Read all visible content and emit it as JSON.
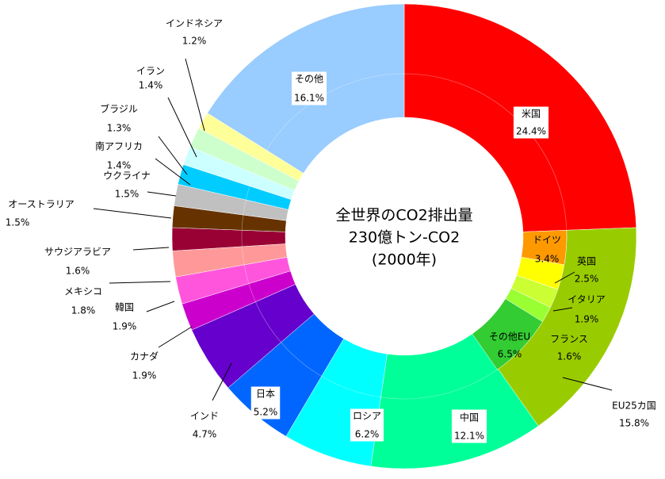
{
  "chart_data": {
    "type": "pie",
    "title": [
      "全世界のCO2排出量",
      "230億トン-CO2",
      "(2000年)"
    ],
    "categories": [
      "米国",
      "EU25カ国",
      "中国",
      "ロシア",
      "日本",
      "インド",
      "カナダ",
      "韓国",
      "メキシコ",
      "サウジアラビア",
      "オーストラリア",
      "ウクライナ",
      "南アフリカ",
      "ブラジル",
      "イラン",
      "インドネシア",
      "その他"
    ],
    "values": [
      24.4,
      15.8,
      12.1,
      6.2,
      5.2,
      4.7,
      1.9,
      1.9,
      1.8,
      1.6,
      1.5,
      1.5,
      1.4,
      1.3,
      1.4,
      1.2,
      16.1
    ],
    "value_labels": [
      "24.4%",
      "15.8%",
      "12.1%",
      "6.2%",
      "5.2%",
      "4.7%",
      "1.9%",
      "1.9%",
      "1.8%",
      "1.6%",
      "1.5%",
      "1.5%",
      "1.4%",
      "1.3%",
      "1.4%",
      "1.2%",
      "16.1%"
    ],
    "colors": [
      "#ff0000",
      "#99cc00",
      "#00ff99",
      "#00ffff",
      "#0066ff",
      "#6600cc",
      "#cc00cc",
      "#ff55dd",
      "#ff9999",
      "#990033",
      "#663300",
      "#c0c0c0",
      "#00ccff",
      "#ccffff",
      "#ccffcc",
      "#ffff99",
      "#99ccff"
    ],
    "eu_breakdown": {
      "categories": [
        "ドイツ",
        "英国",
        "イタリア",
        "フランス",
        "その他EU"
      ],
      "values": [
        3.4,
        2.5,
        1.9,
        1.6,
        6.5
      ],
      "value_labels": [
        "3.4%",
        "2.5%",
        "1.9%",
        "1.6%",
        "6.5%"
      ],
      "colors": [
        "#ff9900",
        "#ffff00",
        "#ccff33",
        "#99ff33",
        "#33cc33"
      ]
    }
  }
}
